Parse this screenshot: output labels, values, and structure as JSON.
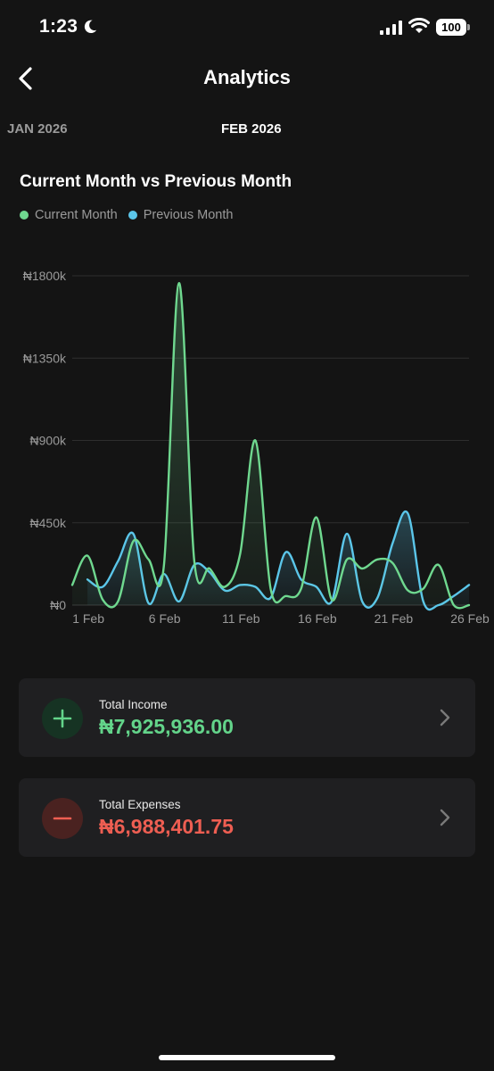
{
  "status_bar": {
    "time": "1:23",
    "battery": "100"
  },
  "header": {
    "title": "Analytics"
  },
  "months": {
    "previous": "JAN 2026",
    "current": "FEB 2026"
  },
  "colors": {
    "current": "#6fd88f",
    "previous": "#5bc6ea",
    "income": "#63d48a",
    "expense": "#ee5e52"
  },
  "chart_data": {
    "type": "line",
    "title": "Current Month vs Previous Month",
    "legend": [
      "Current Month",
      "Previous Month"
    ],
    "legend_placement": "top-left",
    "grid": true,
    "ylim": [
      0,
      1800
    ],
    "y_ticks": [
      "₦0",
      "₦450k",
      "₦900k",
      "₦1350k",
      "₦1800k"
    ],
    "y_tick_values": [
      0,
      450,
      900,
      1350,
      1800
    ],
    "x_ticks": [
      "1 Feb",
      "6 Feb",
      "11 Feb",
      "16 Feb",
      "21 Feb",
      "26 Feb"
    ],
    "x_tick_days": [
      1,
      6,
      11,
      16,
      21,
      26
    ],
    "x_range": [
      0,
      26
    ],
    "series": [
      {
        "name": "Current Month",
        "x": [
          0,
          1,
          2,
          3,
          4,
          5,
          6,
          7,
          8,
          9,
          10,
          11,
          12,
          13,
          14,
          15,
          16,
          17,
          18,
          19,
          20,
          21,
          22,
          23,
          24,
          25,
          26
        ],
        "values": [
          110,
          270,
          30,
          20,
          350,
          250,
          210,
          1760,
          240,
          200,
          100,
          280,
          900,
          90,
          50,
          90,
          480,
          30,
          250,
          200,
          250,
          230,
          80,
          90,
          220,
          0,
          0
        ]
      },
      {
        "name": "Previous Month",
        "x": [
          1,
          2,
          3,
          4,
          5,
          6,
          7,
          8,
          9,
          10,
          11,
          12,
          13,
          14,
          15,
          16,
          17,
          18,
          19,
          20,
          21,
          22,
          23,
          24,
          25,
          26
        ],
        "values": [
          140,
          100,
          240,
          390,
          10,
          170,
          20,
          220,
          180,
          80,
          110,
          100,
          40,
          290,
          140,
          100,
          20,
          390,
          20,
          40,
          340,
          500,
          20,
          0,
          50,
          110
        ]
      }
    ]
  },
  "cards": {
    "income": {
      "label": "Total Income",
      "value": "₦7,925,936.00"
    },
    "expense": {
      "label": "Total Expenses",
      "value": "₦6,988,401.75"
    }
  }
}
